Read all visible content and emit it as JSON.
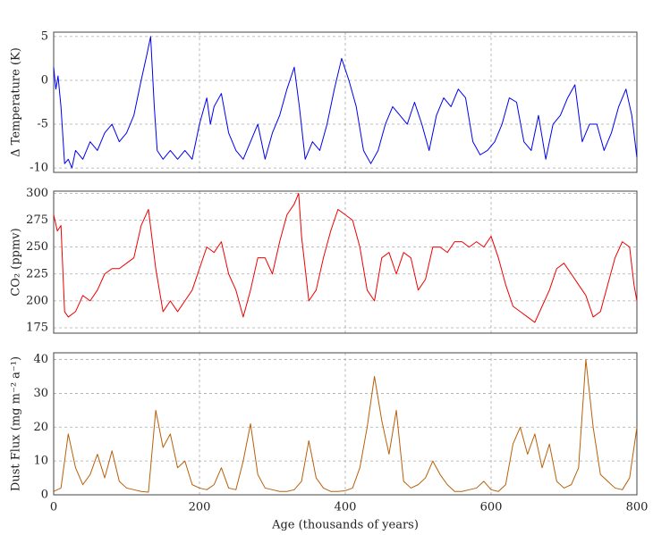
{
  "chart_data": [
    {
      "type": "line",
      "ylabel": "Δ Temperature (K)",
      "color": "#0000ee",
      "grid": true,
      "xlim": [
        0,
        800
      ],
      "xticks": [
        0,
        200,
        400,
        600,
        800
      ],
      "ylim": [
        -10.5,
        5.5
      ],
      "yticks": [
        -10,
        -5,
        0,
        5
      ],
      "x": [
        0,
        3,
        6,
        10,
        15,
        20,
        25,
        30,
        40,
        50,
        60,
        70,
        80,
        90,
        100,
        110,
        120,
        128,
        133,
        138,
        142,
        150,
        160,
        170,
        180,
        190,
        200,
        210,
        215,
        220,
        230,
        240,
        250,
        260,
        270,
        280,
        290,
        300,
        310,
        320,
        330,
        337,
        345,
        355,
        365,
        375,
        385,
        395,
        405,
        415,
        425,
        435,
        445,
        455,
        465,
        475,
        485,
        495,
        505,
        515,
        525,
        535,
        545,
        555,
        565,
        575,
        585,
        595,
        605,
        615,
        625,
        635,
        645,
        655,
        665,
        675,
        685,
        695,
        705,
        715,
        725,
        735,
        745,
        755,
        765,
        775,
        785,
        793,
        800
      ],
      "values": [
        1.5,
        -1,
        0.5,
        -3,
        -9.5,
        -9,
        -10,
        -8,
        -9,
        -7,
        -8,
        -6,
        -5,
        -7,
        -6,
        -4,
        0,
        3,
        5,
        -3,
        -8,
        -9,
        -8,
        -9,
        -8,
        -9,
        -5,
        -2,
        -5,
        -3,
        -1.5,
        -6,
        -8,
        -9,
        -7,
        -5,
        -9,
        -6,
        -4,
        -1,
        1.5,
        -3,
        -9,
        -7,
        -8,
        -5,
        -1,
        2.5,
        0,
        -3,
        -8,
        -9.5,
        -8,
        -5,
        -3,
        -4,
        -5,
        -2.5,
        -5,
        -8,
        -4,
        -2,
        -3,
        -1,
        -2,
        -7,
        -8.5,
        -8,
        -7,
        -5,
        -2,
        -2.5,
        -7,
        -8,
        -4,
        -9,
        -5,
        -4,
        -2,
        -0.5,
        -7,
        -5,
        -5,
        -8,
        -6,
        -3,
        -1,
        -4,
        -8.8
      ]
    },
    {
      "type": "line",
      "ylabel": "CO₂ (ppmv)",
      "color": "#ee0000",
      "grid": true,
      "xlim": [
        0,
        800
      ],
      "xticks": [
        0,
        200,
        400,
        600,
        800
      ],
      "ylim": [
        170,
        302
      ],
      "yticks": [
        175,
        200,
        225,
        250,
        275,
        300
      ],
      "x": [
        0,
        5,
        10,
        15,
        20,
        30,
        40,
        50,
        60,
        70,
        80,
        90,
        100,
        110,
        120,
        130,
        140,
        150,
        160,
        170,
        180,
        190,
        200,
        210,
        220,
        230,
        240,
        250,
        260,
        270,
        280,
        290,
        300,
        310,
        320,
        330,
        336,
        340,
        350,
        360,
        370,
        380,
        390,
        400,
        410,
        420,
        430,
        440,
        450,
        460,
        470,
        480,
        490,
        500,
        510,
        520,
        530,
        540,
        550,
        560,
        570,
        580,
        590,
        600,
        610,
        620,
        630,
        640,
        650,
        660,
        670,
        680,
        690,
        700,
        710,
        720,
        730,
        740,
        750,
        760,
        770,
        780,
        790,
        796,
        800
      ],
      "values": [
        280,
        265,
        270,
        190,
        185,
        190,
        205,
        200,
        210,
        225,
        230,
        230,
        235,
        240,
        270,
        285,
        230,
        190,
        200,
        190,
        200,
        210,
        230,
        250,
        245,
        255,
        225,
        210,
        185,
        210,
        240,
        240,
        225,
        255,
        280,
        290,
        300,
        260,
        200,
        210,
        240,
        265,
        285,
        280,
        275,
        250,
        210,
        200,
        240,
        245,
        225,
        245,
        240,
        210,
        220,
        250,
        250,
        245,
        255,
        255,
        250,
        255,
        250,
        260,
        240,
        215,
        195,
        190,
        185,
        180,
        195,
        210,
        230,
        235,
        225,
        215,
        205,
        185,
        190,
        215,
        240,
        255,
        250,
        215,
        200
      ]
    },
    {
      "type": "line",
      "ylabel": "Dust Flux (mg m⁻² a⁻¹)",
      "xlabel": "Age (thousands of years)",
      "color": "#b8600a",
      "grid": true,
      "xlim": [
        0,
        800
      ],
      "xticks": [
        0,
        200,
        400,
        600,
        800
      ],
      "ylim": [
        0,
        42
      ],
      "yticks": [
        0,
        10,
        20,
        30,
        40
      ],
      "x": [
        0,
        10,
        20,
        30,
        40,
        50,
        60,
        70,
        80,
        90,
        100,
        110,
        120,
        130,
        140,
        150,
        160,
        170,
        180,
        190,
        200,
        210,
        220,
        230,
        240,
        250,
        260,
        270,
        280,
        290,
        300,
        310,
        320,
        330,
        340,
        350,
        360,
        370,
        380,
        390,
        400,
        410,
        420,
        430,
        440,
        450,
        460,
        470,
        480,
        490,
        500,
        510,
        520,
        530,
        540,
        550,
        560,
        570,
        580,
        590,
        600,
        610,
        620,
        630,
        640,
        650,
        660,
        670,
        680,
        690,
        700,
        710,
        720,
        730,
        740,
        750,
        760,
        770,
        780,
        790,
        800
      ],
      "values": [
        1,
        2,
        18,
        8,
        3,
        6,
        12,
        5,
        13,
        4,
        2,
        1.5,
        1,
        0.8,
        25,
        14,
        18,
        8,
        10,
        3,
        2,
        1.5,
        3,
        8,
        2,
        1.5,
        10,
        21,
        6,
        2,
        1.5,
        1,
        1,
        1.5,
        4,
        16,
        5,
        2,
        1,
        1,
        1.2,
        2,
        8,
        20,
        35,
        22,
        12,
        25,
        4,
        2,
        3,
        5,
        10,
        6,
        3,
        1,
        1,
        1.5,
        2,
        4,
        1.5,
        1,
        3,
        15,
        20,
        12,
        18,
        8,
        15,
        4,
        2,
        3,
        8,
        40,
        20,
        6,
        4,
        2,
        1.5,
        5,
        20
      ]
    }
  ]
}
